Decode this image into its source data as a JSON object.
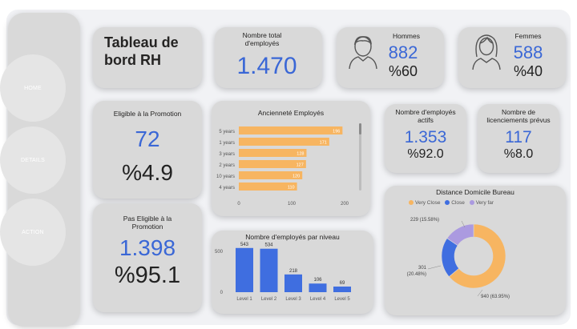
{
  "nav": {
    "home": "HOME",
    "details": "DETAILS",
    "action": "ACTION"
  },
  "header": {
    "title_line1": "Tableau de",
    "title_line2": "bord RH"
  },
  "total": {
    "label_line1": "Nombre total",
    "label_line2": "d'employés",
    "value": "1.470"
  },
  "men": {
    "label": "Hommes",
    "value": "882",
    "percent": "%60"
  },
  "women": {
    "label": "Femmes",
    "value": "588",
    "percent": "%40"
  },
  "eligible": {
    "label": "Eligible à la Promotion",
    "value": "72",
    "percent": "%4.9"
  },
  "not_eligible": {
    "label_line1": "Pas Eligible à la",
    "label_line2": "Promotion",
    "value": "1.398",
    "percent": "%95.1"
  },
  "active": {
    "label_line1": "Nombre d'employés",
    "label_line2": "actifs",
    "value": "1.353",
    "percent": "%92.0"
  },
  "layoffs": {
    "label_line1": "Nombre de",
    "label_line2": "licenciements prévus",
    "value": "117",
    "percent": "%8.0"
  },
  "colors": {
    "accent_blue": "#3a67d6",
    "bar_orange": "#f7b561",
    "bar_blue": "#3f6ee0",
    "donut_purple": "#ab9ae0"
  },
  "icons": {
    "men": "man-avatar-icon",
    "women": "woman-avatar-icon"
  },
  "chart_data": [
    {
      "type": "bar",
      "orientation": "horizontal",
      "title": "Ancienneté Employés",
      "categories": [
        "5 years",
        "1 years",
        "3 years",
        "2 years",
        "10 years",
        "4 years"
      ],
      "values": [
        196,
        171,
        128,
        127,
        120,
        110
      ],
      "xlim": [
        0,
        200
      ],
      "xticks": [
        "0",
        "100",
        "200"
      ],
      "grid": false,
      "color": "#f7b561"
    },
    {
      "type": "bar",
      "title": "Nombre d'employés par niveau",
      "categories": [
        "Level 1",
        "Level 2",
        "Level 3",
        "Level 4",
        "Level 5"
      ],
      "values": [
        543,
        534,
        218,
        106,
        69
      ],
      "ylim": [
        0,
        600
      ],
      "yticks": [
        "0",
        "500"
      ],
      "grid": false,
      "color": "#3f6ee0"
    },
    {
      "type": "pie",
      "style": "donut",
      "title": "Distance Domicile Bureau",
      "labels": [
        "Very Close",
        "Close",
        "Very far"
      ],
      "values": [
        940,
        301,
        229
      ],
      "data_labels": [
        "940 (63.95%)",
        "301 (20.48%)",
        "229 (15.58%)"
      ],
      "colors": [
        "#f7b561",
        "#3f6ee0",
        "#ab9ae0"
      ],
      "legend_position": "top"
    }
  ]
}
